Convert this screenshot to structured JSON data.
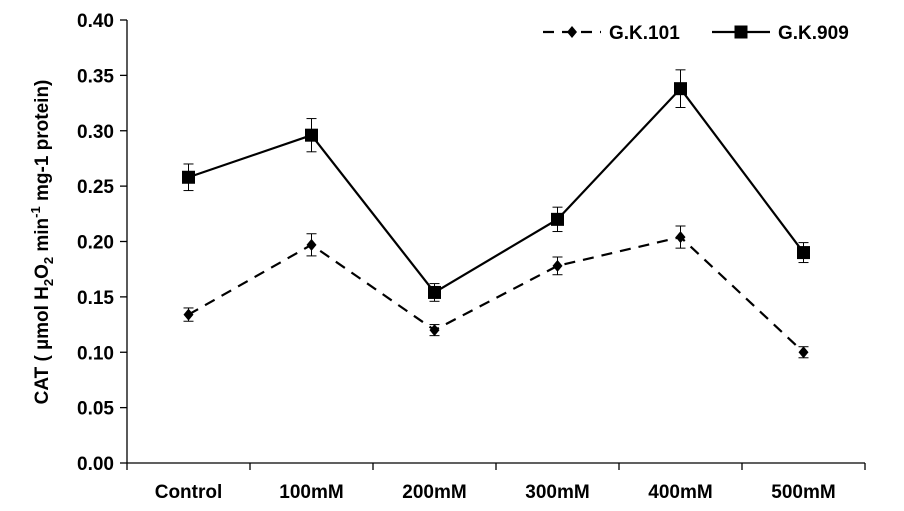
{
  "chart_data": {
    "type": "line",
    "title": "",
    "xlabel": "",
    "ylabel_parts": [
      "CAT ( µmol H",
      "2",
      "O",
      "2",
      " min",
      "-1",
      " mg-1 protein)"
    ],
    "categories": [
      "Control",
      "100mM",
      "200mM",
      "300mM",
      "400mM",
      "500mM"
    ],
    "ylim": [
      0,
      0.4
    ],
    "yticks": [
      "0.00",
      "0.05",
      "0.10",
      "0.15",
      "0.20",
      "0.25",
      "0.30",
      "0.35",
      "0.40"
    ],
    "legend_position": "top-right",
    "series": [
      {
        "name": "G.K.101",
        "style": "dashed",
        "marker": "diamond",
        "color": "#000000",
        "values": [
          0.134,
          0.197,
          0.12,
          0.178,
          0.204,
          0.1
        ],
        "errors": [
          0.006,
          0.01,
          0.005,
          0.008,
          0.01,
          0.005
        ]
      },
      {
        "name": "G.K.909",
        "style": "solid",
        "marker": "square",
        "color": "#000000",
        "values": [
          0.258,
          0.296,
          0.154,
          0.22,
          0.338,
          0.19
        ],
        "errors": [
          0.012,
          0.015,
          0.008,
          0.011,
          0.017,
          0.009
        ]
      }
    ]
  }
}
